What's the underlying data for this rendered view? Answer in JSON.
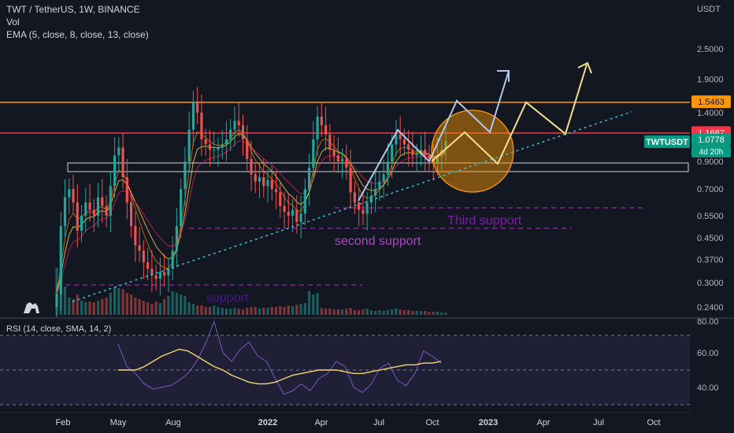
{
  "header": {
    "title": "TWT / TetherUS, 1W, BINANCE",
    "vol": "Vol",
    "ema": "EMA (5, close, 8, close, 13, close)",
    "currency": "USDT"
  },
  "colors": {
    "bg": "#131722",
    "up": "#26a69a",
    "down": "#ef5350",
    "orange": "#ff9800",
    "red": "#f23645",
    "purple": "#9c27b0",
    "dotted": "#3db9d3"
  },
  "chart_data": [
    {
      "type": "candlestick",
      "title": "TWT / TetherUS, 1W, BINANCE",
      "y_scale": "log",
      "y_ticks": [
        "2.5000",
        "1.9000",
        "1.4000",
        "1.1000",
        "0.9000",
        "0.7000",
        "0.5500",
        "0.4500",
        "0.3700",
        "0.3000",
        "0.2400"
      ],
      "x_ticks": [
        "Feb",
        "May",
        "Aug",
        "2022",
        "Apr",
        "Jul",
        "Oct",
        "2023",
        "Apr",
        "Jul",
        "Oct"
      ],
      "price_tags": [
        {
          "label": "1.5463",
          "color": "#ff9800"
        },
        {
          "label": "1.1687",
          "color": "#f23645"
        },
        {
          "label": "TWTUSDT",
          "color": "#089981"
        },
        {
          "label": "1.0778",
          "color": "#089981"
        },
        {
          "label": "4d 20h",
          "color": "#089981"
        }
      ],
      "levels": [
        {
          "price": 1.5463,
          "color": "#ff9800"
        },
        {
          "price": 1.1687,
          "color": "#f23645"
        }
      ],
      "annotations": [
        "Third support",
        "second support",
        "support"
      ],
      "closes": [
        0.27,
        0.5,
        0.65,
        0.7,
        0.62,
        0.48,
        0.55,
        0.62,
        0.58,
        0.55,
        0.65,
        0.6,
        0.55,
        0.72,
        0.95,
        1.02,
        0.78,
        0.62,
        0.5,
        0.42,
        0.4,
        0.36,
        0.34,
        0.32,
        0.31,
        0.33,
        0.32,
        0.34,
        0.4,
        0.5,
        0.7,
        0.9,
        1.2,
        1.55,
        1.4,
        1.1,
        1.05,
        1.0,
        1.0,
        1.02,
        1.05,
        1.1,
        1.2,
        1.3,
        1.25,
        1.1,
        0.92,
        0.8,
        0.75,
        0.78,
        0.72,
        0.76,
        0.7,
        0.68,
        0.6,
        0.57,
        0.55,
        0.58,
        0.52,
        0.56,
        0.7,
        0.85,
        1.1,
        1.35,
        1.25,
        1.15,
        1.0,
        0.95,
        0.9,
        0.92,
        0.85,
        0.68,
        0.62,
        0.58,
        0.56,
        0.62,
        0.66,
        0.7,
        0.75,
        0.8,
        0.9,
        1.05,
        1.15,
        1.1,
        1.05,
        1.0,
        0.95,
        0.96,
        1.0,
        0.95,
        0.92,
        0.88,
        0.95,
        1.0,
        1.08
      ],
      "volumes": [
        60,
        44,
        36,
        22,
        20,
        26,
        18,
        16,
        17,
        16,
        18,
        20,
        22,
        28,
        35,
        34,
        33,
        28,
        26,
        22,
        20,
        18,
        16,
        14,
        17,
        15,
        20,
        24,
        30,
        28,
        26,
        24,
        16,
        14,
        12,
        12,
        10,
        10,
        12,
        10,
        9,
        8,
        8,
        9,
        8,
        7,
        9,
        10,
        10,
        8,
        9,
        9,
        10,
        10,
        11,
        10,
        12,
        11,
        13,
        14,
        15,
        30,
        26,
        28,
        9,
        8,
        8,
        7,
        7,
        7,
        8,
        9,
        6,
        6,
        7,
        8,
        6,
        5,
        6,
        5,
        6,
        7,
        8,
        7,
        6,
        6,
        5,
        5,
        5,
        5,
        4,
        4,
        4,
        3,
        3
      ]
    },
    {
      "type": "line",
      "title": "RSI (14, close, SMA, 14, 2)",
      "y_ticks": [
        "80.00",
        "60.00",
        "40.00"
      ],
      "ylim": [
        30,
        80
      ],
      "series": [
        {
          "values": [
            65,
            52,
            48,
            42,
            39,
            40,
            41,
            44,
            48,
            55,
            65,
            78,
            60,
            55,
            62,
            66,
            58,
            55,
            45,
            36,
            38,
            42,
            38,
            45,
            48,
            55,
            52,
            40,
            37,
            42,
            51,
            54,
            44,
            41,
            48,
            61,
            58,
            54
          ]
        },
        {
          "values": [
            50,
            50,
            50,
            52,
            55,
            58,
            60,
            62,
            61,
            58,
            55,
            52,
            50,
            47,
            45,
            43,
            42,
            42,
            43,
            45,
            47,
            48,
            49,
            50,
            50,
            50,
            49,
            48,
            48,
            49,
            50,
            51,
            52,
            53,
            53,
            54,
            54,
            55
          ]
        }
      ]
    }
  ]
}
